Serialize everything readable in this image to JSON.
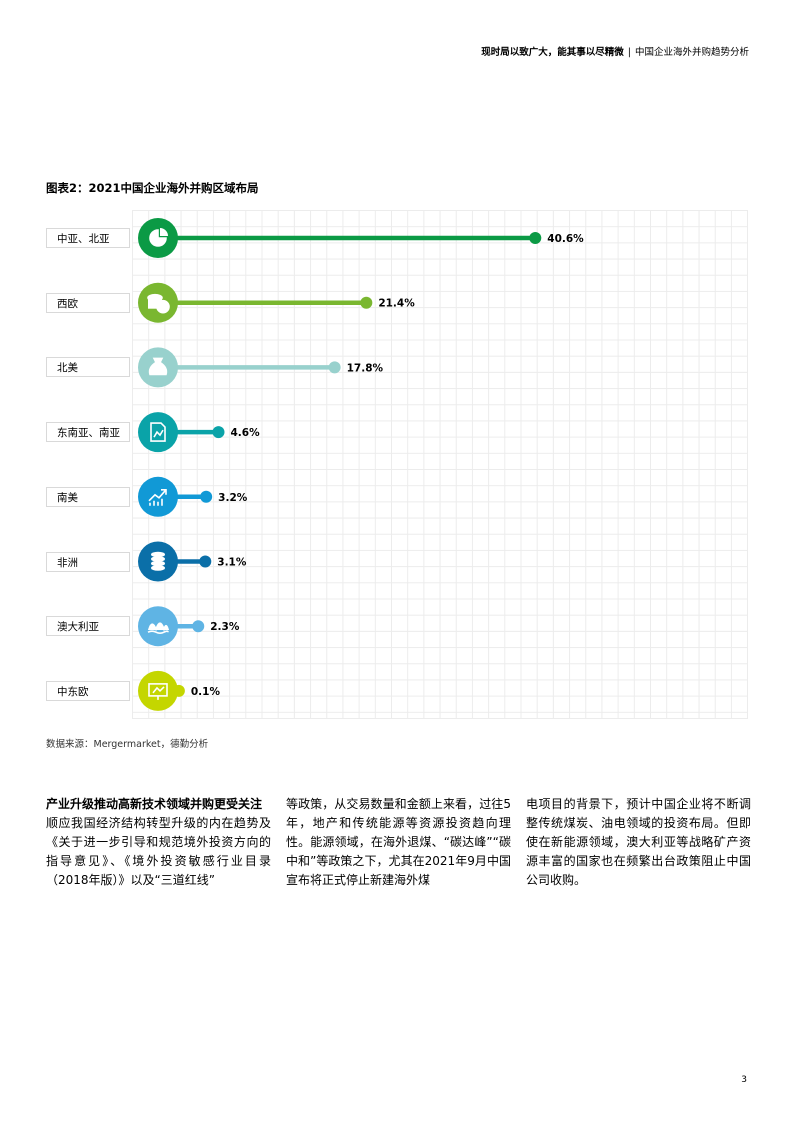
{
  "header": {
    "bold_text": "现时局以致广大，能其事以尽精微",
    "separator": "|",
    "text": "中国企业海外并购趋势分析"
  },
  "chart_data": {
    "type": "bar",
    "title": "图表2：2021中国企业海外并购区域布局",
    "categories": [
      "中亚、北亚",
      "西欧",
      "北美",
      "东南亚、南亚",
      "南美",
      "非洲",
      "澳大利亚",
      "中东欧"
    ],
    "values": [
      40.6,
      21.4,
      17.8,
      4.6,
      3.2,
      3.1,
      2.3,
      0.1
    ],
    "value_labels": [
      "40.6%",
      "21.4%",
      "17.8%",
      "4.6%",
      "3.2%",
      "3.1%",
      "2.3%",
      "0.1%"
    ],
    "colors": [
      "#0b9a45",
      "#7ab730",
      "#98d1cd",
      "#0aa3a8",
      "#1199d6",
      "#0b6fa8",
      "#5fb4e4",
      "#c4d600"
    ],
    "icons": [
      "pie-chart-icon",
      "coins-icon",
      "money-bag-icon",
      "document-chart-icon",
      "growth-chart-icon",
      "coin-stack-icon",
      "opera-house-icon",
      "presentation-board-icon"
    ],
    "unit": "%",
    "xlim": [
      0,
      100
    ]
  },
  "source": "数据来源：Mergermarket，德勤分析",
  "body": {
    "subheading": "产业升级推动高新技术领域并购更受关注",
    "col1": "顺应我国经济结构转型升级的内在趋势及《关于进一步引导和规范境外投资方向的指导意见》、《境外投资敏感行业目录（2018年版）》以及“三道红线”",
    "col2": "等政策，从交易数量和金额上来看，过往5年，地产和传统能源等资源投资趋向理性。能源领域，在海外退煤、“碳达峰”“碳中和”等政策之下，尤其在2021年9月中国宣布将正式停止新建海外煤",
    "col3": "电项目的背景下，预计中国企业将不断调整传统煤炭、油电领域的投资布局。但即使在新能源领域，澳大利亚等战略矿产资源丰富的国家也在频繁出台政策阻止中国公司收购。"
  },
  "page_number": "3"
}
